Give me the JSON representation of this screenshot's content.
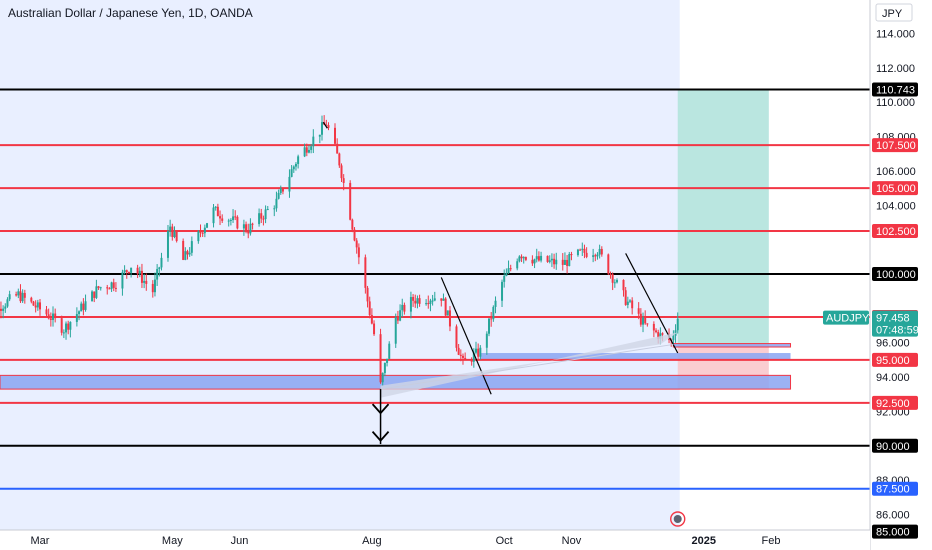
{
  "header": {
    "title": "Australian Dollar / Japanese Yen, 1D, OANDA"
  },
  "axis": {
    "currency": "JPY"
  },
  "chart_data": {
    "type": "candlestick",
    "title": "Australian Dollar / Japanese Yen, 1D, OANDA",
    "symbol": "AUDJPY",
    "ylim": [
      84.6,
      115.8
    ],
    "y_ticks": [
      "114.000",
      "112.000",
      "110.000",
      "108.000",
      "106.000",
      "104.000",
      "102.500",
      "96.000",
      "94.000",
      "92.000",
      "88.000",
      "86.000"
    ],
    "y_tick_values": [
      114,
      112,
      110,
      108,
      106,
      104,
      102.5,
      96,
      94,
      92,
      88,
      86
    ],
    "x_ticks": [
      "Mar",
      "May",
      "Jun",
      "Aug",
      "Oct",
      "Nov",
      "2025",
      "Feb"
    ],
    "x_tick_dates": [
      "2024-03-01",
      "2024-05-01",
      "2024-06-01",
      "2024-08-01",
      "2024-10-01",
      "2024-11-01",
      "2025-01-01",
      "2025-02-01"
    ],
    "x_range": [
      "2024-02-01",
      "2025-03-31"
    ],
    "last_bar_date": "2024-12-20",
    "anchors": [
      [
        "2024-02-01",
        97.3
      ],
      [
        "2024-02-20",
        98.8
      ],
      [
        "2024-03-05",
        97.6
      ],
      [
        "2024-03-12",
        96.8
      ],
      [
        "2024-03-28",
        99.2
      ],
      [
        "2024-04-05",
        99.5
      ],
      [
        "2024-04-12",
        100.5
      ],
      [
        "2024-04-22",
        99.0
      ],
      [
        "2024-04-30",
        102.8
      ],
      [
        "2024-05-06",
        100.8
      ],
      [
        "2024-05-20",
        103.7
      ],
      [
        "2024-06-05",
        102.6
      ],
      [
        "2024-06-18",
        104.2
      ],
      [
        "2024-06-28",
        106.8
      ],
      [
        "2024-07-11",
        108.8
      ],
      [
        "2024-07-17",
        106.5
      ],
      [
        "2024-07-26",
        101.0
      ],
      [
        "2024-08-02",
        96.5
      ],
      [
        "2024-08-05",
        93.5
      ],
      [
        "2024-08-12",
        97.5
      ],
      [
        "2024-08-20",
        98.5
      ],
      [
        "2024-09-02",
        98.7
      ],
      [
        "2024-09-12",
        94.8
      ],
      [
        "2024-09-20",
        95.5
      ],
      [
        "2024-09-30",
        99.5
      ],
      [
        "2024-10-08",
        101.2
      ],
      [
        "2024-10-16",
        100.8
      ],
      [
        "2024-10-28",
        100.6
      ],
      [
        "2024-11-05",
        101.2
      ],
      [
        "2024-11-13",
        101.4
      ],
      [
        "2024-11-26",
        98.5
      ],
      [
        "2024-12-05",
        97.0
      ],
      [
        "2024-12-12",
        96.4
      ],
      [
        "2024-12-17",
        96.1
      ],
      [
        "2024-12-20",
        97.46
      ]
    ],
    "horizontal_levels": [
      {
        "value": 110.743,
        "label": "110.743",
        "color": "#000000"
      },
      {
        "value": 107.5,
        "label": "107.500",
        "color": "#f23645"
      },
      {
        "value": 105.0,
        "label": "105.000",
        "color": "#f23645"
      },
      {
        "value": 102.5,
        "label": "102.500",
        "color": "#f23645"
      },
      {
        "value": 100.0,
        "label": "100.000",
        "color": "#000000"
      },
      {
        "value": 97.5,
        "label": "97.500",
        "color": "#f23645"
      },
      {
        "value": 95.0,
        "label": "95.000",
        "color": "#f23645"
      },
      {
        "value": 92.5,
        "label": "92.500",
        "color": "#f23645"
      },
      {
        "value": 90.0,
        "label": "90.000",
        "color": "#000000"
      },
      {
        "value": 87.5,
        "label": "87.500",
        "color": "#2962ff"
      },
      {
        "value": 85.0,
        "label": "85.000",
        "color": "#000000"
      }
    ],
    "current_price": {
      "symbol": "AUDJPY",
      "value": 97.458,
      "label": "97.458",
      "countdown": "07:48:59",
      "color": "#26a69a"
    },
    "zones": {
      "demand_zone": {
        "from": "2024-02-01",
        "to": "2025-02-10",
        "y1": 93.3,
        "y2": 94.1
      },
      "demand_zone_2": {
        "from": "2024-09-20",
        "to": "2025-02-10",
        "y1": 95.0,
        "y2": 95.4
      },
      "small_zone": {
        "from": "2024-12-18",
        "to": "2025-02-10",
        "y1": 95.75,
        "y2": 95.95
      },
      "target_zone": {
        "from": "2024-12-20",
        "to": "2025-01-31",
        "y1": 95.9,
        "y2": 110.743
      },
      "stop_zone": {
        "from": "2024-12-20",
        "to": "2025-01-31",
        "y1": 93.3,
        "y2": 95.9
      }
    },
    "colors": {
      "up": "#26a69a",
      "down": "#f23645",
      "history_bg": "#e9efff",
      "target": "#b2e3dd",
      "stop": "#f9c8cc",
      "zone": "#8aa4f2"
    }
  }
}
